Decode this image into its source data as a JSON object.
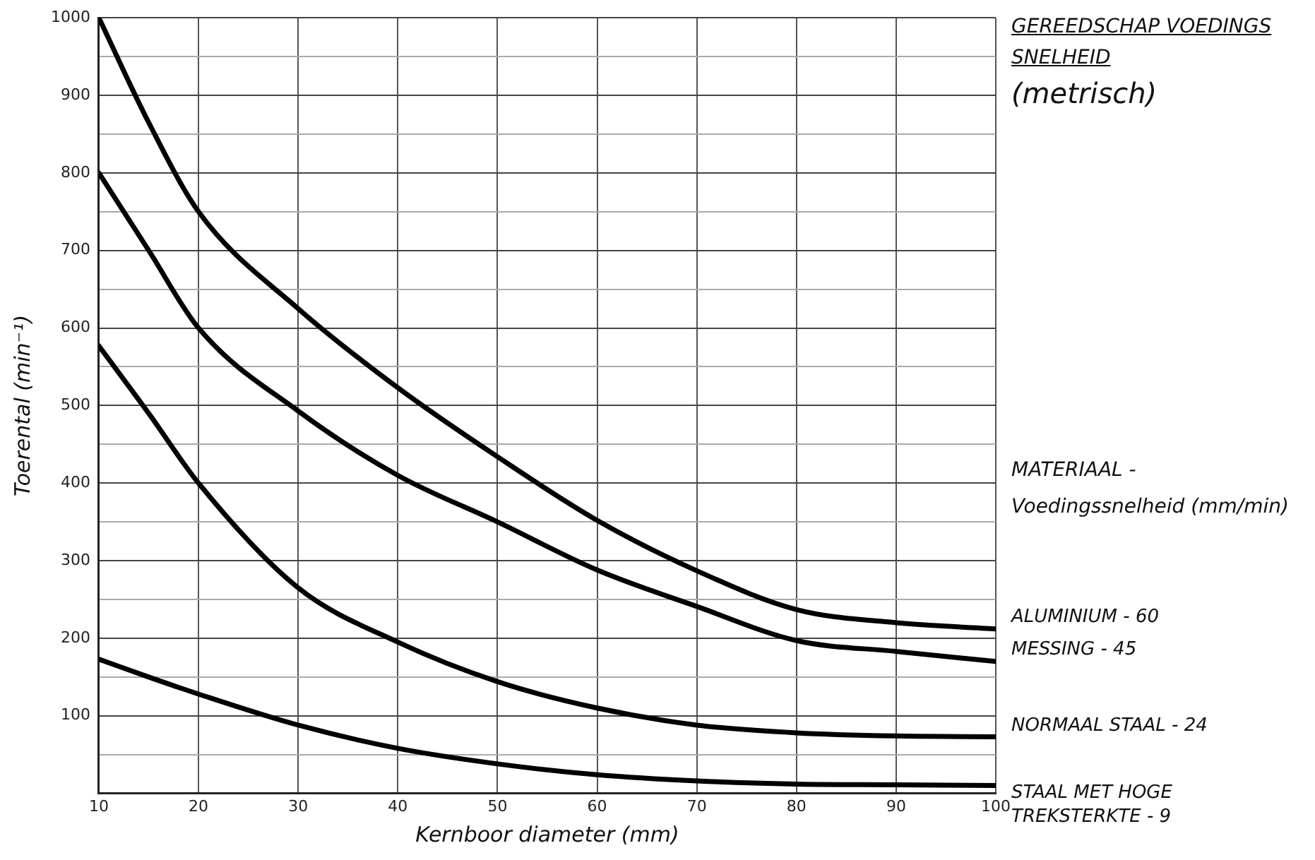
{
  "chart_data": {
    "type": "line",
    "title": "GEREEDSCHAP VOEDINGS SNELHEID",
    "subtitle": "(metrisch)",
    "xlabel": "Kernboor diameter (mm)",
    "ylabel": "Toerental (min⁻¹)",
    "legend_title": "MATERIAAL - Voedingssnelheid (mm/min)",
    "x": [
      10,
      15,
      20,
      30,
      40,
      50,
      60,
      70,
      80,
      90,
      100
    ],
    "series": [
      {
        "name": "ALUMINIUM - 60",
        "color": "#000000",
        "values": [
          1000,
          865,
          750,
          625,
          523,
          434,
          352,
          287,
          237,
          220,
          212
        ]
      },
      {
        "name": "MESSING - 45",
        "color": "#000000",
        "values": [
          800,
          700,
          600,
          493,
          410,
          350,
          288,
          241,
          197,
          183,
          170
        ]
      },
      {
        "name": "NORMAAL STAAL - 24",
        "color": "#000000",
        "values": [
          577,
          490,
          400,
          265,
          195,
          144,
          110,
          88,
          78,
          74,
          73
        ]
      },
      {
        "name": "STAAL MET HOGE TREKSTERKTE - 9",
        "color": "#000000",
        "values": [
          173,
          150,
          128,
          88,
          58,
          38,
          24,
          16,
          12,
          11,
          10
        ]
      }
    ],
    "xlim": [
      10,
      100
    ],
    "xticks": [
      10,
      20,
      30,
      40,
      50,
      60,
      70,
      80,
      90,
      100
    ],
    "ylim": [
      0,
      1000
    ],
    "yticks": [
      {
        "value": 0,
        "label": null
      },
      {
        "value": 50,
        "label": null
      },
      100,
      {
        "value": 150,
        "label": null
      },
      200,
      {
        "value": 250,
        "label": null
      },
      300,
      {
        "value": 350,
        "label": null
      },
      400,
      {
        "value": 450,
        "label": null
      },
      500,
      {
        "value": 550,
        "label": null
      },
      600,
      {
        "value": 650,
        "label": null
      },
      700,
      {
        "value": 750,
        "label": null
      },
      800,
      {
        "value": 850,
        "label": null
      },
      900,
      {
        "value": 950,
        "label": null
      },
      1000
    ],
    "grid": true,
    "legend": false,
    "marker": "none",
    "line_style": "solid"
  }
}
